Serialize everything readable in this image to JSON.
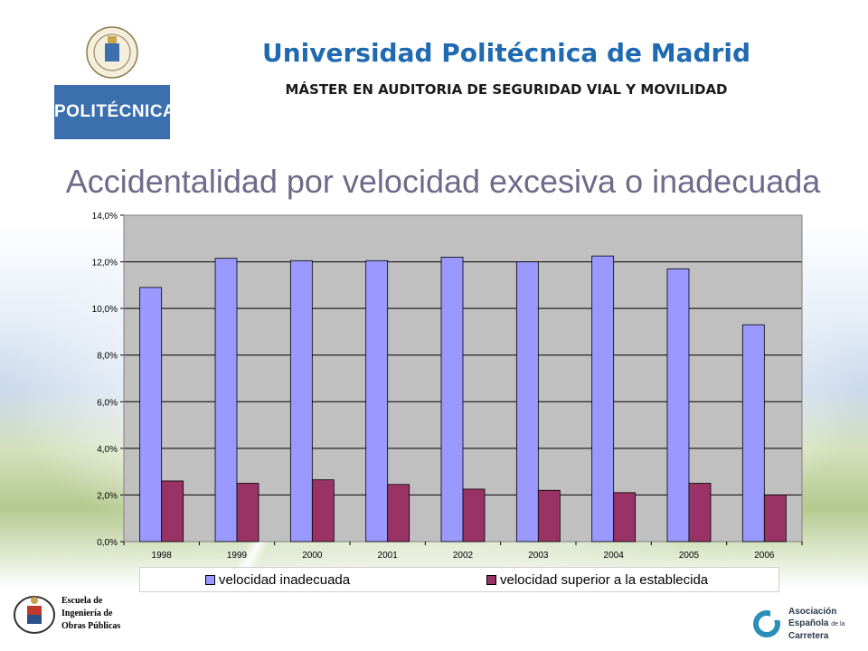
{
  "header": {
    "university": "Universidad Politécnica de Madrid",
    "program": "MÁSTER EN AUDITORIA DE SEGURIDAD VIAL Y MOVILIDAD",
    "logo_text": "POLITÉCNICA"
  },
  "slide": {
    "title": "Accidentalidad por velocidad excesiva o inadecuada"
  },
  "footer": {
    "etsi_line1": "Escuela de",
    "etsi_line2": "Ingeniería de",
    "etsi_line3": "Obras Públicas",
    "aec_line1": "Asociación",
    "aec_line2": "Española",
    "aec_line2_small": "de la",
    "aec_line3": "Carretera"
  },
  "colors": {
    "series1": "#9999ff",
    "series2": "#993366",
    "plot_bg": "#c0c0c0",
    "title_blue": "#1f6ab0"
  },
  "chart_data": {
    "type": "bar",
    "categories": [
      "1998",
      "1999",
      "2000",
      "2001",
      "2002",
      "2003",
      "2004",
      "2005",
      "2006"
    ],
    "series": [
      {
        "name": "velocidad inadecuada",
        "values": [
          10.9,
          12.15,
          12.05,
          12.05,
          12.2,
          12.0,
          12.25,
          11.7,
          9.3
        ]
      },
      {
        "name": "velocidad superior a la establecida",
        "values": [
          2.6,
          2.5,
          2.65,
          2.45,
          2.25,
          2.2,
          2.1,
          2.5,
          2.0
        ]
      }
    ],
    "yticks": [
      "0,0%",
      "2,0%",
      "4,0%",
      "6,0%",
      "8,0%",
      "10,0%",
      "12,0%",
      "14,0%"
    ],
    "ylim": [
      0,
      14
    ],
    "grid": true,
    "legend": "bottom"
  }
}
